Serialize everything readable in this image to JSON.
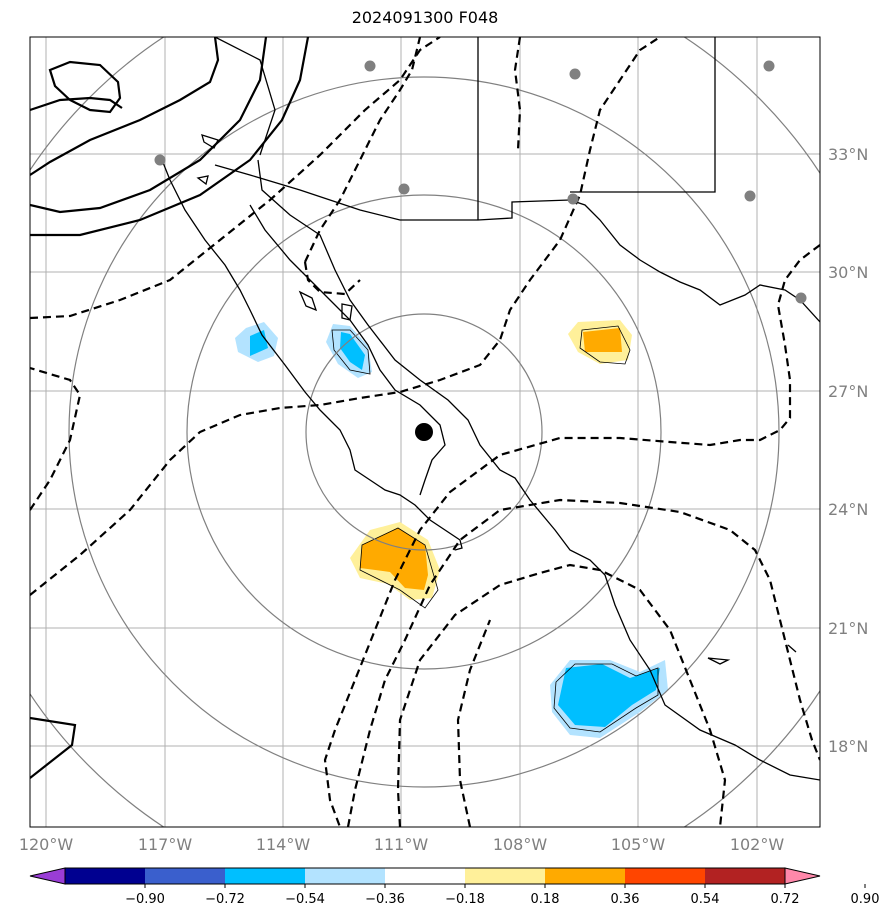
{
  "title": "2024091300 F048",
  "map": {
    "lat_labels": [
      "33°N",
      "30°N",
      "27°N",
      "24°N",
      "21°N",
      "18°N"
    ],
    "lon_labels": [
      "120°W",
      "117°W",
      "114°W",
      "111°W",
      "108°W",
      "105°W",
      "102°W"
    ],
    "gridline_color": "#b0b0b0",
    "label_color": "#808080"
  },
  "colorbar": {
    "ticks": [
      "−0.90",
      "−0.72",
      "−0.54",
      "−0.36",
      "−0.18",
      "0.18",
      "0.36",
      "0.54",
      "0.72",
      "0.90"
    ],
    "colors": [
      "#9a3dd6",
      "#000090",
      "#3a5fcd",
      "#00bfff",
      "#b3e3ff",
      "#ffffff",
      "#fff09a",
      "#ffaa00",
      "#ff4500",
      "#b22222",
      "#ff88aa"
    ]
  },
  "features": {
    "center_marker": "black-dot",
    "station_markers": "grey-dots",
    "range_rings": 4
  }
}
